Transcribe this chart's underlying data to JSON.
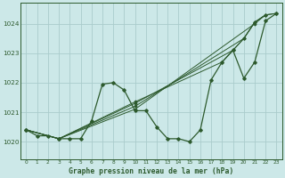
{
  "title": "Graphe pression niveau de la mer (hPa)",
  "bg_color": "#cce8e8",
  "grid_color": "#aacccc",
  "line_color": "#2d5a2d",
  "xlim": [
    -0.5,
    23.5
  ],
  "ylim": [
    1019.4,
    1024.7
  ],
  "yticks": [
    1020,
    1021,
    1022,
    1023,
    1024
  ],
  "xticks": [
    0,
    1,
    2,
    3,
    4,
    5,
    6,
    7,
    8,
    9,
    10,
    11,
    12,
    13,
    14,
    15,
    16,
    17,
    18,
    19,
    20,
    21,
    22,
    23
  ],
  "linear1": {
    "x": [
      0,
      3,
      10,
      21,
      22
    ],
    "y": [
      1020.4,
      1020.1,
      1021.1,
      1024.0,
      1024.3
    ]
  },
  "linear2": {
    "x": [
      0,
      3,
      10,
      20,
      21,
      22
    ],
    "y": [
      1020.4,
      1020.1,
      1021.2,
      1023.5,
      1024.05,
      1024.3
    ]
  },
  "linear3": {
    "x": [
      0,
      3,
      10,
      19,
      20,
      21,
      22,
      23
    ],
    "y": [
      1020.4,
      1020.1,
      1021.3,
      1023.1,
      1023.5,
      1024.05,
      1024.3,
      1024.35
    ]
  },
  "linear4": {
    "x": [
      0,
      3,
      10,
      18,
      19,
      20,
      21,
      22,
      23
    ],
    "y": [
      1020.4,
      1020.1,
      1021.35,
      1022.7,
      1023.1,
      1023.5,
      1024.05,
      1024.3,
      1024.35
    ]
  },
  "zigzag": {
    "x": [
      0,
      1,
      2,
      3,
      4,
      5,
      6,
      7,
      8,
      9,
      10,
      11,
      12,
      13,
      14,
      15,
      16,
      17,
      18,
      19,
      20,
      21,
      22,
      23
    ],
    "y": [
      1020.4,
      1020.2,
      1020.2,
      1020.1,
      1020.1,
      1020.1,
      1020.7,
      1021.95,
      1022.0,
      1021.75,
      1021.05,
      1021.05,
      1020.5,
      1020.1,
      1020.1,
      1020.0,
      1020.4,
      1022.1,
      1022.7,
      1023.1,
      1022.15,
      1022.7,
      1024.1,
      1024.35
    ]
  }
}
